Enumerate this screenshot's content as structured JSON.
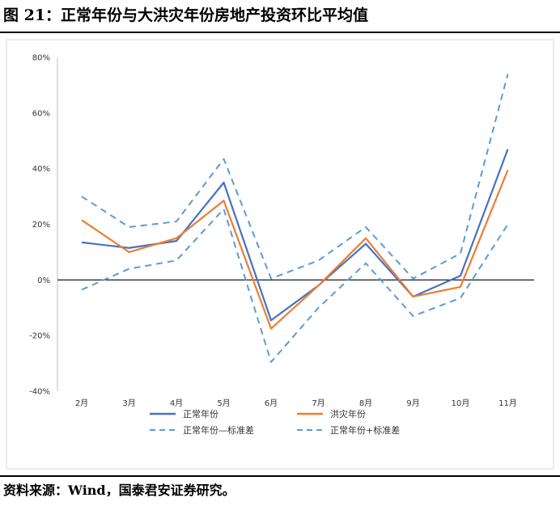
{
  "figure": {
    "title": "图 21：正常年份与大洪灾年份房地产投资环比平均值",
    "source": "资料来源：Wind，国泰君安证券研究。"
  },
  "colors": {
    "normal": "#4472c4",
    "flood": "#ed7d31",
    "band": "#5b9bd5",
    "axis": "#000000",
    "frame": "#d9d9d9"
  },
  "chart_data": {
    "type": "line",
    "title": "",
    "xlabel": "",
    "ylabel": "",
    "ylim": [
      -40,
      80
    ],
    "y_unit": "%",
    "y_ticks": [
      80,
      60,
      40,
      20,
      0,
      -20,
      -40
    ],
    "y_tick_labels": [
      "80%",
      "60%",
      "40%",
      "20%",
      "0%",
      "-20%",
      "-40%"
    ],
    "grid": false,
    "legend_position": "bottom",
    "categories": [
      "2月",
      "3月",
      "4月",
      "5月",
      "6月",
      "7月",
      "8月",
      "9月",
      "10月",
      "11月"
    ],
    "series": [
      {
        "name": "正常年份",
        "style": "solid",
        "color": "#4472c4",
        "values": [
          13.5,
          11.5,
          14,
          35,
          -14.5,
          -2,
          13,
          -6,
          1.5,
          47
        ]
      },
      {
        "name": "洪灾年份",
        "style": "solid",
        "color": "#ed7d31",
        "values": [
          21.5,
          10,
          15,
          28.5,
          -17.5,
          -2,
          15,
          -6,
          -2.5,
          39.5
        ]
      },
      {
        "name": "正常年份—标准差",
        "style": "dashed",
        "color": "#5b9bd5",
        "values": [
          -3.5,
          4,
          7,
          25.5,
          -29.5,
          -10,
          6,
          -13,
          -6.5,
          20
        ]
      },
      {
        "name": "正常年份+标准差",
        "style": "dashed",
        "color": "#5b9bd5",
        "values": [
          30,
          19,
          21,
          43.5,
          0.5,
          7,
          19,
          0.5,
          9.5,
          74
        ]
      }
    ]
  }
}
